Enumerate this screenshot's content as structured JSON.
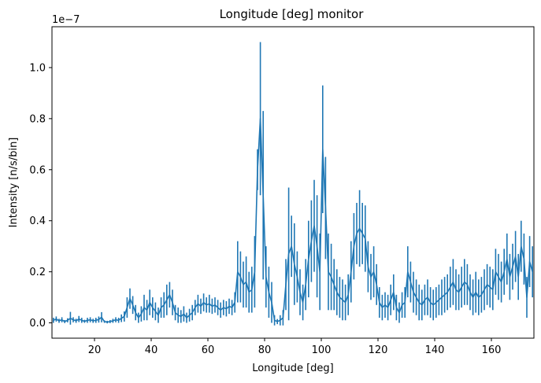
{
  "chart_data": {
    "type": "line",
    "title": "Longitude [deg] monitor",
    "xlabel": "Longitude [deg]",
    "ylabel": "Intensity [n/s/bin]",
    "y_offset_label": "1e−7",
    "y_scale_factor": 1e-07,
    "xlim": [
      5,
      175
    ],
    "ylim": [
      -6e-09,
      1.16e-07
    ],
    "x_ticks": [
      20,
      40,
      60,
      80,
      100,
      120,
      140,
      160
    ],
    "y_ticks": [
      0.0,
      0.2,
      0.4,
      0.6,
      0.8,
      1.0
    ],
    "x_tick_labels": [
      "20",
      "40",
      "60",
      "80",
      "100",
      "120",
      "140",
      "160"
    ],
    "y_tick_labels": [
      "0.0",
      "0.2",
      "0.4",
      "0.6",
      "0.8",
      "1.0"
    ],
    "grid": false,
    "line_color": "#1f77b4",
    "series": [
      {
        "x": [
          5.5,
          6.5,
          7.5,
          8.5,
          9.5,
          10.5,
          11.5,
          12.5,
          13.5,
          14.5,
          15.5,
          16.5,
          17.5,
          18.5,
          19.5,
          20.5,
          21.5,
          22.5,
          23.5,
          24.5,
          25.5,
          26.5,
          27.5,
          28.5,
          29.5,
          30.5,
          31.5,
          32.5,
          33.5,
          34.5,
          35.5,
          36.5,
          37.5,
          38.5,
          39.5,
          40.5,
          41.5,
          42.5,
          43.5,
          44.5,
          45.5,
          46.5,
          47.5,
          48.5,
          49.5,
          50.5,
          51.5,
          52.5,
          53.5,
          54.5,
          55.5,
          56.5,
          57.5,
          58.5,
          59.5,
          60.5,
          61.5,
          62.5,
          63.5,
          64.5,
          65.5,
          66.5,
          67.5,
          68.5,
          69.5,
          70.5,
          71.5,
          72.5,
          73.5,
          74.5,
          75.5,
          76.5,
          77.5,
          78.5,
          79.5,
          80.5,
          81.5,
          82.5,
          83.5,
          84.5,
          85.5,
          86.5,
          87.5,
          88.5,
          89.5,
          90.5,
          91.5,
          92.5,
          93.5,
          94.5,
          95.5,
          96.5,
          97.5,
          98.5,
          99.5,
          100.5,
          101.5,
          102.5,
          103.5,
          104.5,
          105.5,
          106.5,
          107.5,
          108.5,
          109.5,
          110.5,
          111.5,
          112.5,
          113.5,
          114.5,
          115.5,
          116.5,
          117.5,
          118.5,
          119.5,
          120.5,
          121.5,
          122.5,
          123.5,
          124.5,
          125.5,
          126.5,
          127.5,
          128.5,
          129.5,
          130.5,
          131.5,
          132.5,
          133.5,
          134.5,
          135.5,
          136.5,
          137.5,
          138.5,
          139.5,
          140.5,
          141.5,
          142.5,
          143.5,
          144.5,
          145.5,
          146.5,
          147.5,
          148.5,
          149.5,
          150.5,
          151.5,
          152.5,
          153.5,
          154.5,
          155.5,
          156.5,
          157.5,
          158.5,
          159.5,
          160.5,
          161.5,
          162.5,
          163.5,
          164.5,
          165.5,
          166.5,
          167.5,
          168.5,
          169.5,
          170.5,
          171.5,
          172.5,
          173.5,
          174.5
        ],
        "y": [
          0.01,
          0.015,
          0.008,
          0.012,
          0.005,
          0.01,
          0.018,
          0.012,
          0.008,
          0.015,
          0.01,
          0.006,
          0.01,
          0.012,
          0.008,
          0.01,
          0.013,
          0.022,
          0.005,
          0.003,
          0.005,
          0.008,
          0.012,
          0.01,
          0.018,
          0.025,
          0.06,
          0.095,
          0.07,
          0.04,
          0.02,
          0.035,
          0.06,
          0.05,
          0.08,
          0.06,
          0.045,
          0.03,
          0.06,
          0.07,
          0.09,
          0.11,
          0.08,
          0.04,
          0.03,
          0.025,
          0.035,
          0.02,
          0.03,
          0.04,
          0.06,
          0.075,
          0.065,
          0.08,
          0.07,
          0.075,
          0.065,
          0.07,
          0.06,
          0.05,
          0.06,
          0.055,
          0.065,
          0.06,
          0.08,
          0.2,
          0.18,
          0.15,
          0.16,
          0.12,
          0.13,
          0.2,
          0.6,
          0.8,
          0.5,
          0.18,
          0.12,
          0.08,
          0.01,
          0.005,
          0.01,
          0.02,
          0.15,
          0.27,
          0.3,
          0.23,
          0.18,
          0.12,
          0.08,
          0.15,
          0.25,
          0.32,
          0.38,
          0.3,
          0.2,
          0.68,
          0.45,
          0.2,
          0.18,
          0.15,
          0.12,
          0.1,
          0.09,
          0.08,
          0.11,
          0.2,
          0.3,
          0.35,
          0.37,
          0.35,
          0.33,
          0.22,
          0.18,
          0.2,
          0.15,
          0.08,
          0.06,
          0.07,
          0.06,
          0.09,
          0.12,
          0.06,
          0.04,
          0.07,
          0.08,
          0.2,
          0.16,
          0.12,
          0.1,
          0.08,
          0.07,
          0.09,
          0.1,
          0.08,
          0.07,
          0.08,
          0.09,
          0.1,
          0.11,
          0.12,
          0.14,
          0.16,
          0.13,
          0.12,
          0.14,
          0.16,
          0.15,
          0.12,
          0.1,
          0.12,
          0.1,
          0.11,
          0.13,
          0.15,
          0.14,
          0.13,
          0.2,
          0.18,
          0.16,
          0.2,
          0.25,
          0.18,
          0.22,
          0.26,
          0.18,
          0.3,
          0.25,
          0.1,
          0.24,
          0.2
        ],
        "yerr": [
          0.01,
          0.01,
          0.008,
          0.01,
          0.006,
          0.008,
          0.025,
          0.01,
          0.008,
          0.012,
          0.01,
          0.006,
          0.01,
          0.01,
          0.008,
          0.01,
          0.012,
          0.02,
          0.005,
          0.005,
          0.006,
          0.008,
          0.01,
          0.01,
          0.015,
          0.02,
          0.04,
          0.04,
          0.035,
          0.03,
          0.02,
          0.03,
          0.05,
          0.04,
          0.05,
          0.04,
          0.035,
          0.03,
          0.04,
          0.05,
          0.06,
          0.05,
          0.05,
          0.03,
          0.03,
          0.025,
          0.03,
          0.02,
          0.025,
          0.03,
          0.03,
          0.035,
          0.03,
          0.035,
          0.03,
          0.035,
          0.03,
          0.03,
          0.03,
          0.03,
          0.03,
          0.03,
          0.03,
          0.03,
          0.04,
          0.12,
          0.1,
          0.09,
          0.1,
          0.08,
          0.09,
          0.14,
          0.08,
          0.3,
          0.33,
          0.12,
          0.1,
          0.08,
          0.02,
          0.01,
          0.02,
          0.03,
          0.1,
          0.26,
          0.12,
          0.16,
          0.1,
          0.09,
          0.07,
          0.1,
          0.15,
          0.16,
          0.18,
          0.2,
          0.15,
          0.25,
          0.2,
          0.15,
          0.13,
          0.1,
          0.09,
          0.08,
          0.08,
          0.07,
          0.08,
          0.12,
          0.13,
          0.12,
          0.15,
          0.12,
          0.13,
          0.1,
          0.09,
          0.1,
          0.08,
          0.06,
          0.05,
          0.05,
          0.05,
          0.06,
          0.07,
          0.05,
          0.04,
          0.05,
          0.06,
          0.1,
          0.08,
          0.08,
          0.07,
          0.07,
          0.06,
          0.06,
          0.07,
          0.06,
          0.06,
          0.06,
          0.06,
          0.07,
          0.07,
          0.07,
          0.08,
          0.09,
          0.08,
          0.07,
          0.08,
          0.09,
          0.08,
          0.07,
          0.07,
          0.08,
          0.07,
          0.07,
          0.08,
          0.08,
          0.08,
          0.08,
          0.09,
          0.09,
          0.08,
          0.09,
          0.1,
          0.09,
          0.09,
          0.1,
          0.09,
          0.1,
          0.1,
          0.08,
          0.1,
          0.1
        ]
      }
    ]
  }
}
